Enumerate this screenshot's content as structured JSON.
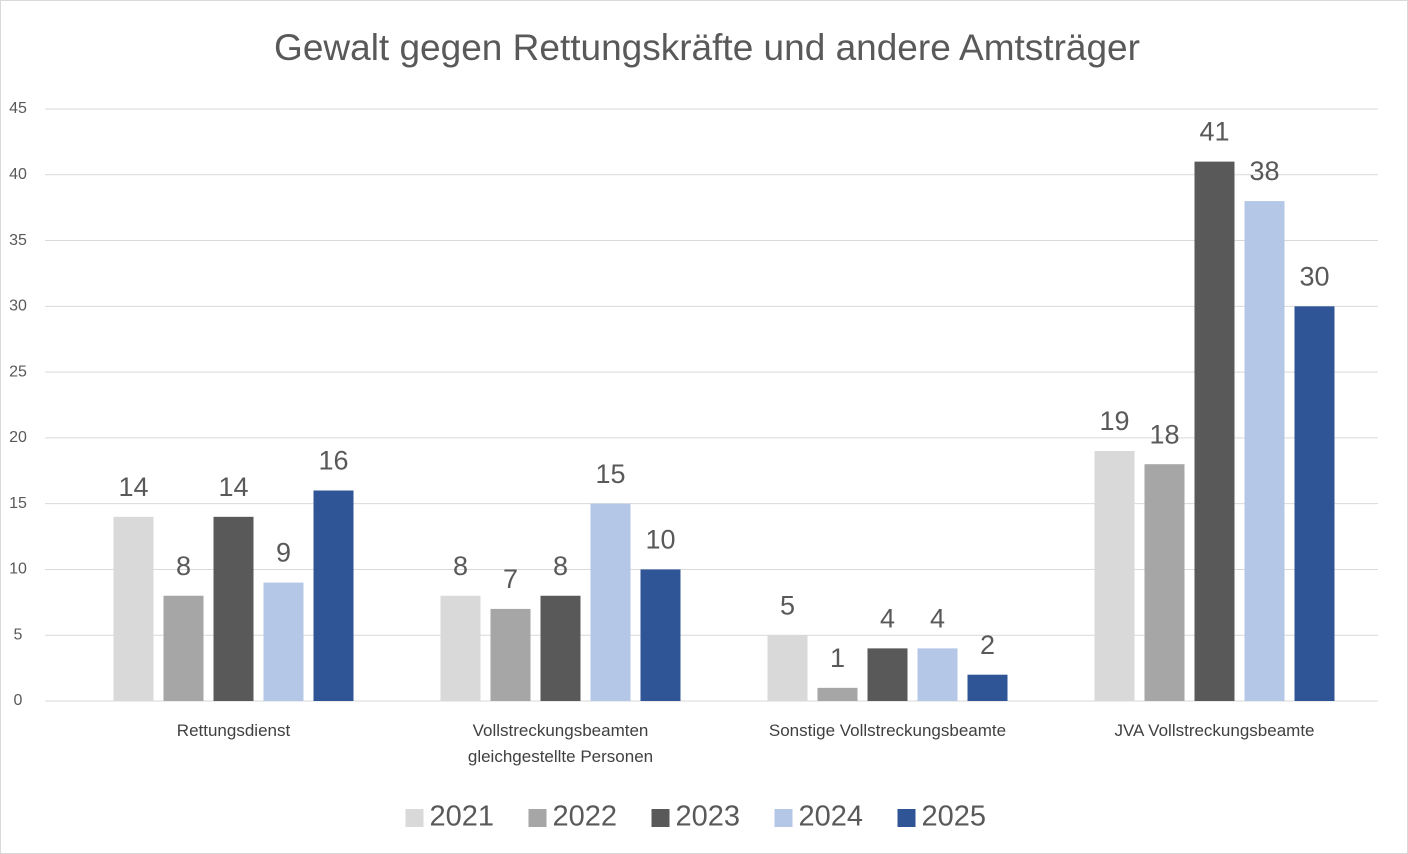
{
  "chart_data": {
    "type": "bar",
    "title": "Gewalt gegen Rettungskräfte und andere Amtsträger",
    "categories": [
      "Rettungsdienst",
      "Vollstreckungsbeamten gleichgestellte Personen",
      "Sonstige Vollstreckungsbeamte",
      "JVA Vollstreckungsbeamte"
    ],
    "series": [
      {
        "name": "2021",
        "color": "#d9d9d9",
        "values": [
          14,
          8,
          5,
          19
        ]
      },
      {
        "name": "2022",
        "color": "#a6a6a6",
        "values": [
          8,
          7,
          1,
          18
        ]
      },
      {
        "name": "2023",
        "color": "#595959",
        "values": [
          14,
          8,
          4,
          41
        ]
      },
      {
        "name": "2024",
        "color": "#b4c7e7",
        "values": [
          9,
          15,
          4,
          38
        ]
      },
      {
        "name": "2025",
        "color": "#2f5597",
        "values": [
          16,
          10,
          2,
          30
        ]
      }
    ],
    "ylim": [
      0,
      45
    ],
    "yticks": [
      0,
      5,
      10,
      15,
      20,
      25,
      30,
      35,
      40,
      45
    ],
    "grid": true,
    "legend": "bottom"
  }
}
